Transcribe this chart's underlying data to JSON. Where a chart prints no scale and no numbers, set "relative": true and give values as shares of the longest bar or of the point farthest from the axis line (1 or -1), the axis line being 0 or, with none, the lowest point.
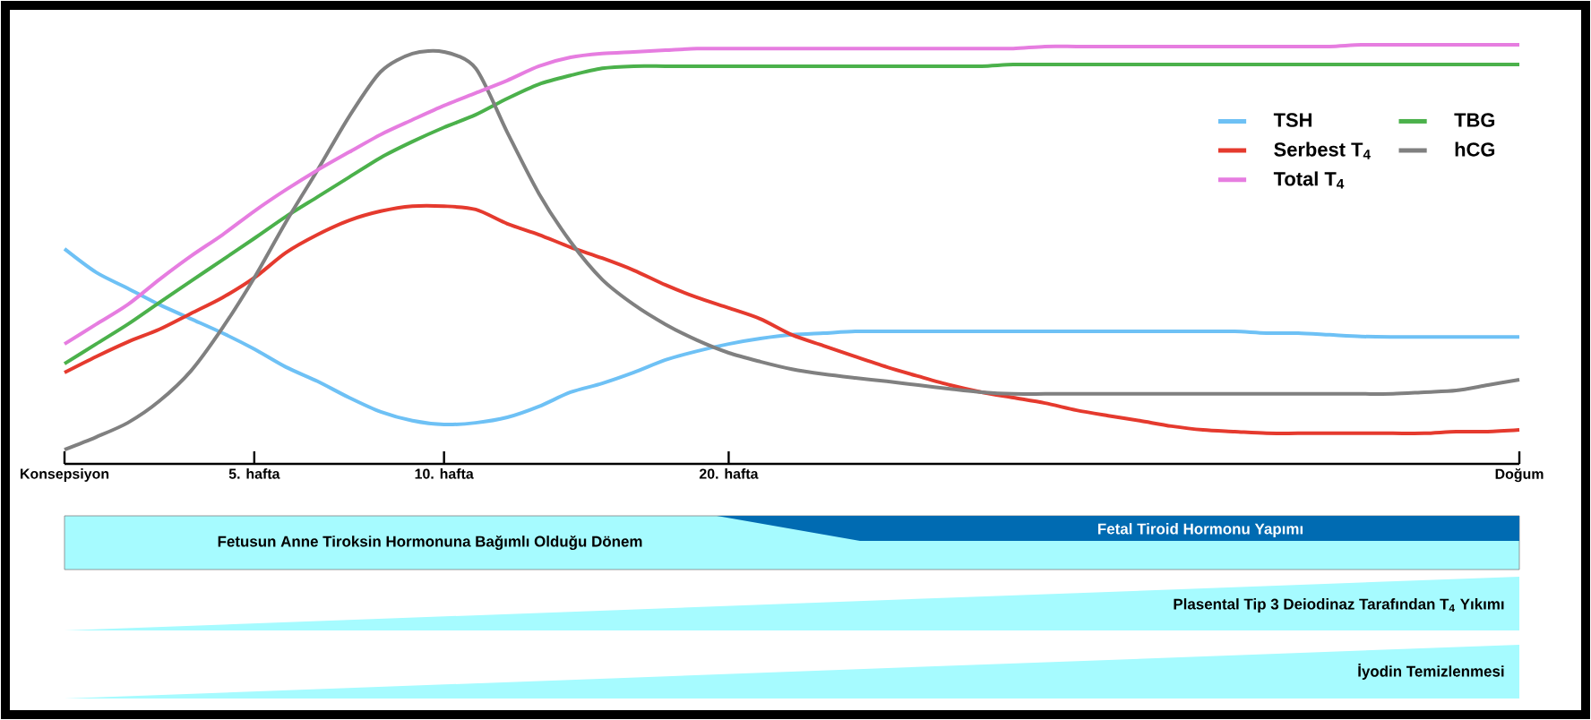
{
  "chart_data": {
    "type": "line",
    "relative": true,
    "legend": "top right",
    "marker": "none",
    "line_style": "solid",
    "categories": [
      "Konsepsiyon",
      null,
      null,
      null,
      null,
      null,
      "5. hafta",
      null,
      null,
      null,
      null,
      null,
      "10. hafta",
      null,
      null,
      null,
      null,
      null,
      null,
      null,
      null,
      "20. hafta",
      null,
      null,
      null,
      null,
      null,
      null,
      null,
      null,
      null,
      null,
      null,
      null,
      null,
      null,
      null,
      null,
      null,
      null,
      null,
      null,
      null,
      null,
      null,
      null,
      "Doğum"
    ],
    "series": [
      {
        "name": "TSH",
        "color": "#6ec1f5",
        "values": [
          0.513,
          0.457,
          0.419,
          0.38,
          0.346,
          0.312,
          0.274,
          0.231,
          0.197,
          0.158,
          0.124,
          0.103,
          0.094,
          0.098,
          0.111,
          0.137,
          0.171,
          0.192,
          0.218,
          0.248,
          0.269,
          0.286,
          0.299,
          0.308,
          0.312,
          0.316,
          0.316,
          0.316,
          0.316,
          0.316,
          0.316,
          0.316,
          0.316,
          0.316,
          0.316,
          0.316,
          0.316,
          0.316,
          0.312,
          0.312,
          0.308,
          0.304,
          0.303,
          0.303,
          0.303,
          0.303,
          0.303
        ]
      },
      {
        "name": "TBG",
        "color": "#4bb14b",
        "values": [
          0.239,
          0.286,
          0.333,
          0.385,
          0.436,
          0.487,
          0.538,
          0.59,
          0.637,
          0.684,
          0.731,
          0.769,
          0.803,
          0.833,
          0.872,
          0.906,
          0.927,
          0.944,
          0.949,
          0.949,
          0.949,
          0.949,
          0.949,
          0.949,
          0.949,
          0.949,
          0.949,
          0.949,
          0.949,
          0.949,
          0.953,
          0.953,
          0.953,
          0.953,
          0.953,
          0.953,
          0.953,
          0.953,
          0.953,
          0.953,
          0.953,
          0.953,
          0.953,
          0.953,
          0.953,
          0.953,
          0.953
        ]
      },
      {
        "name": "Serbest T$_{4}$",
        "color": "#e53a2e",
        "values": [
          0.218,
          0.256,
          0.291,
          0.321,
          0.359,
          0.397,
          0.444,
          0.504,
          0.547,
          0.581,
          0.603,
          0.615,
          0.615,
          0.607,
          0.573,
          0.547,
          0.517,
          0.491,
          0.462,
          0.427,
          0.397,
          0.372,
          0.346,
          0.308,
          0.282,
          0.256,
          0.231,
          0.209,
          0.188,
          0.171,
          0.158,
          0.145,
          0.128,
          0.115,
          0.103,
          0.09,
          0.081,
          0.077,
          0.073,
          0.073,
          0.073,
          0.073,
          0.073,
          0.073,
          0.077,
          0.077,
          0.081
        ]
      },
      {
        "name": "hCG",
        "color": "#808080",
        "values": [
          0.034,
          0.064,
          0.098,
          0.15,
          0.222,
          0.325,
          0.444,
          0.577,
          0.701,
          0.829,
          0.936,
          0.979,
          0.983,
          0.944,
          0.791,
          0.645,
          0.53,
          0.44,
          0.38,
          0.333,
          0.295,
          0.265,
          0.244,
          0.226,
          0.214,
          0.205,
          0.197,
          0.188,
          0.179,
          0.171,
          0.167,
          0.167,
          0.167,
          0.167,
          0.167,
          0.167,
          0.167,
          0.167,
          0.167,
          0.167,
          0.167,
          0.167,
          0.167,
          0.171,
          0.175,
          0.188,
          0.201
        ]
      },
      {
        "name": "Total T$_{4}$",
        "color": "#e67de0",
        "values": [
          0.286,
          0.333,
          0.38,
          0.44,
          0.496,
          0.547,
          0.603,
          0.654,
          0.701,
          0.744,
          0.786,
          0.821,
          0.855,
          0.885,
          0.915,
          0.949,
          0.97,
          0.979,
          0.983,
          0.987,
          0.991,
          0.991,
          0.991,
          0.991,
          0.991,
          0.991,
          0.991,
          0.991,
          0.991,
          0.991,
          0.991,
          0.996,
          0.996,
          0.996,
          0.996,
          0.996,
          0.996,
          0.996,
          0.996,
          0.996,
          0.996,
          1,
          1,
          1,
          1,
          1,
          1
        ]
      }
    ],
    "annotations": [
      "Fetusun Anne Tiroksin Hormonuna Bağımlı Olduğu Dönem",
      "Fetal Tiroid Hormonu Yapımı",
      "Plasental Tip 3 Deiodinaz Tarafından T$_{4}$ Yıkımı",
      "İyodin Temizlenmesi"
    ]
  }
}
